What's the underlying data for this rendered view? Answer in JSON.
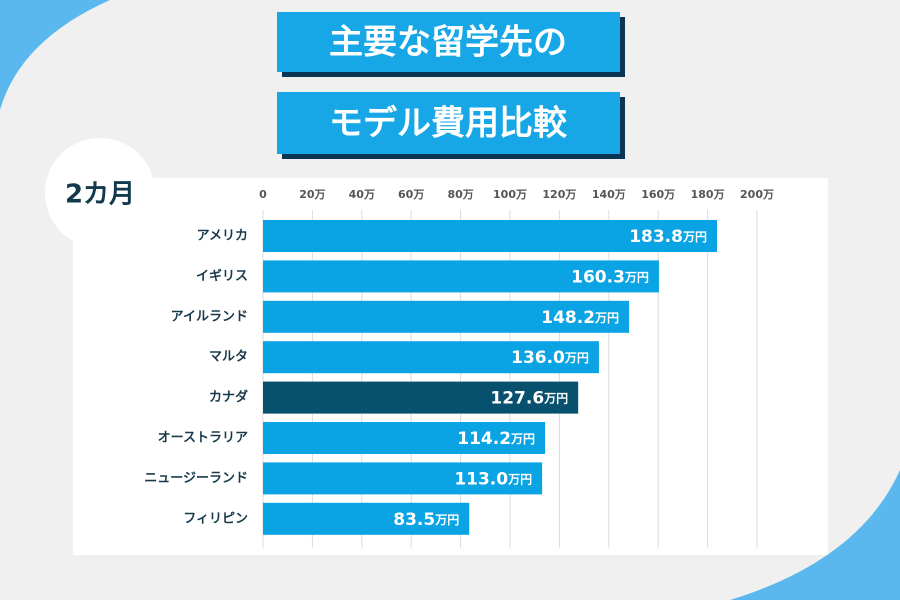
{
  "chart_data": {
    "type": "bar",
    "orientation": "horizontal",
    "title": "主要な留学先の",
    "subtitle": "モデル費用比較",
    "annotation": "2カ月",
    "categories": [
      "アメリカ",
      "イギリス",
      "アイルランド",
      "マルタ",
      "カナダ",
      "オーストラリア",
      "ニュージーランド",
      "フィリピン"
    ],
    "values": [
      183.8,
      160.3,
      148.2,
      136.0,
      127.6,
      114.2,
      113.0,
      83.5
    ],
    "value_labels": [
      "183.8万円",
      "160.3万円",
      "148.2万円",
      "136.0万円",
      "127.6万円",
      "114.2万円",
      "113.0万円",
      "83.5万円"
    ],
    "colors": [
      "#0aa3e3",
      "#0aa3e3",
      "#0aa3e3",
      "#0aa3e3",
      "#07506e",
      "#0aa3e3",
      "#0aa3e3",
      "#0aa3e3"
    ],
    "xlim": [
      0,
      200
    ],
    "xticks": [
      0,
      {
        "value": 20,
        "label": "20万"
      },
      {
        "value": 40,
        "label": "40万"
      },
      {
        "value": 60,
        "label": "60万"
      },
      {
        "value": 80,
        "label": "80万"
      },
      {
        "value": 100,
        "label": "100万"
      },
      {
        "value": 120,
        "label": "120万"
      },
      {
        "value": 140,
        "label": "140万"
      },
      {
        "value": 160,
        "label": "160万"
      },
      {
        "value": 180,
        "label": "180万"
      },
      {
        "value": 200,
        "label": "200万"
      }
    ],
    "grid": true
  }
}
